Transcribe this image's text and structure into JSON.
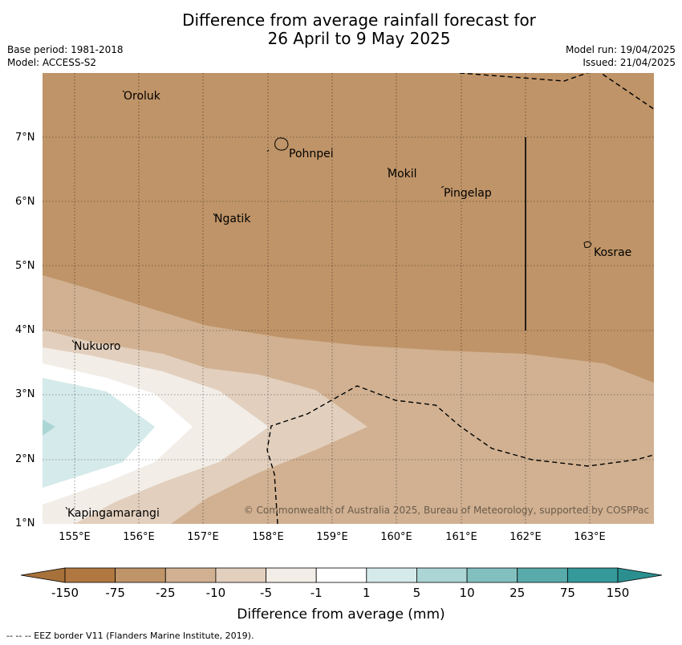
{
  "title": {
    "line1": "Difference from average rainfall forecast for",
    "line2": "26 April to 9 May 2025"
  },
  "meta": {
    "base_period": "Base period: 1981-2018",
    "model": "Model: ACCESS-S2",
    "model_run": "Model run: 19/04/2025",
    "issued": "Issued: 21/04/2025"
  },
  "map": {
    "lon_range": [
      154.5,
      164.0
    ],
    "lat_range": [
      1.0,
      8.0
    ],
    "lat_ticks": [
      "1°N",
      "2°N",
      "3°N",
      "4°N",
      "5°N",
      "6°N",
      "7°N"
    ],
    "lon_ticks": [
      "155°E",
      "156°E",
      "157°E",
      "158°E",
      "159°E",
      "160°E",
      "161°E",
      "162°E",
      "163°E"
    ],
    "places": [
      {
        "name": "Oroluk"
      },
      {
        "name": "Pohnpei"
      },
      {
        "name": "Mokil"
      },
      {
        "name": "Pingelap"
      },
      {
        "name": "Ngatik"
      },
      {
        "name": "Kosrae"
      },
      {
        "name": "Nukuoro"
      },
      {
        "name": "Kapingamarangi"
      }
    ],
    "copyright": "© Commonwealth of Australia 2025, Bureau of Meteorology, supported by COSPPac"
  },
  "colorbar": {
    "ticks": [
      "-150",
      "-75",
      "-25",
      "-10",
      "-5",
      "-1",
      "1",
      "5",
      "10",
      "25",
      "75",
      "150"
    ],
    "label": "Difference from average (mm)",
    "colors": {
      "below_min": "#a6713a",
      "bins": [
        "#b07840",
        "#bf9468",
        "#d1b192",
        "#e2cfbd",
        "#f2ede7",
        "#ffffff",
        "#d5eaea",
        "#acd5d5",
        "#82c0c0",
        "#59abab",
        "#35999a"
      ],
      "above_max": "#2b8f8f"
    }
  },
  "footnote": "--  --  -- EEZ border V11 (Flanders Marine Institute, 2019)."
}
